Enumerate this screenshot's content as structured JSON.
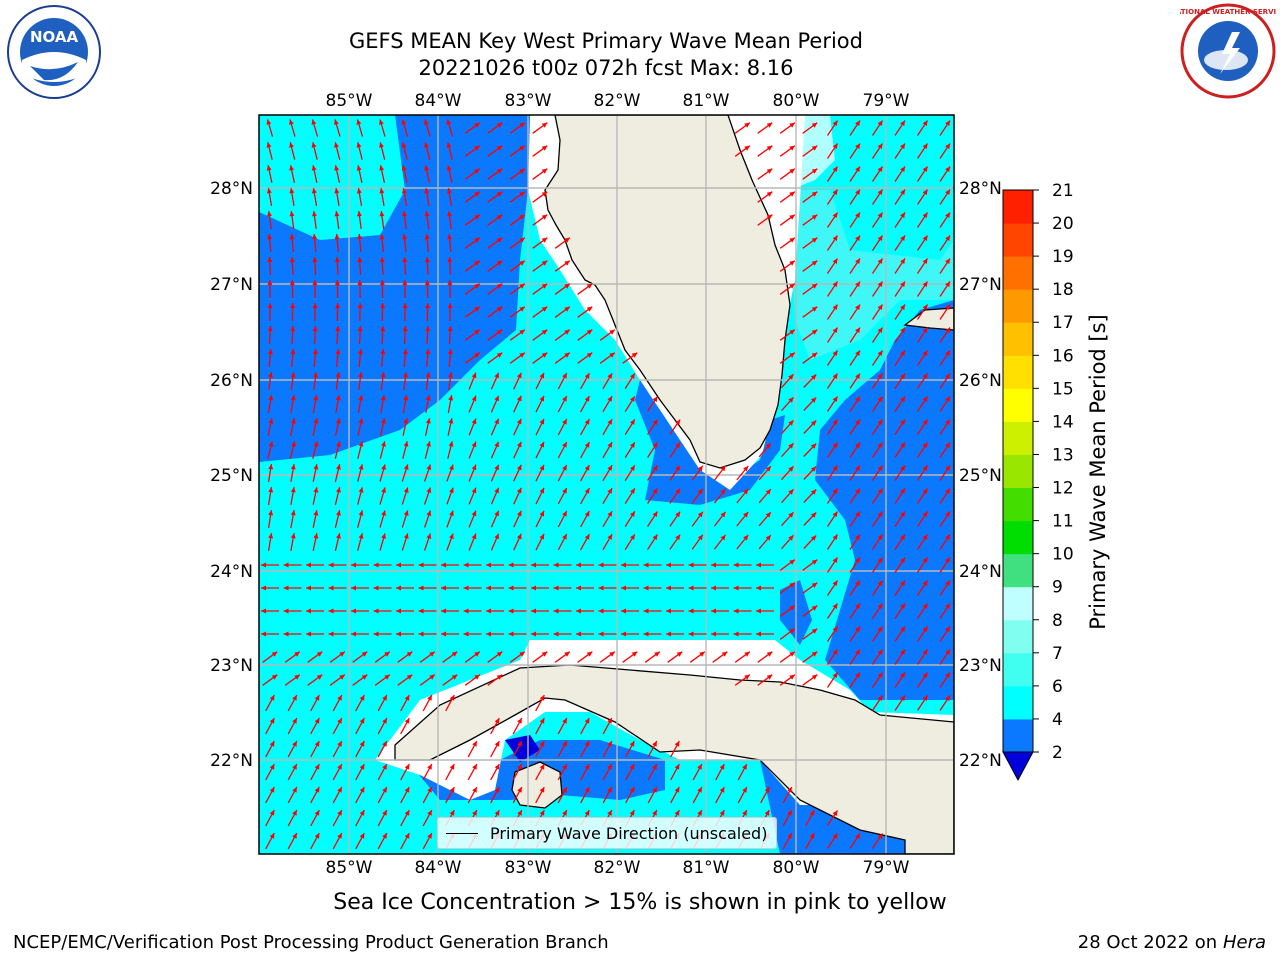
{
  "title_line1": "GEFS MEAN Key West Primary Wave Mean Period",
  "title_line2": "20221026 t00z 072h fcst   Max: 8.16",
  "x_ticks": [
    "85°W",
    "84°W",
    "83°W",
    "82°W",
    "81°W",
    "80°W",
    "79°W"
  ],
  "y_ticks": [
    "28°N",
    "27°N",
    "26°N",
    "25°N",
    "24°N",
    "23°N",
    "22°N"
  ],
  "colorbar": {
    "title": "Primary Wave Mean Period [s]",
    "levels": [
      "2",
      "4",
      "6",
      "7",
      "8",
      "9",
      "10",
      "11",
      "12",
      "13",
      "14",
      "15",
      "16",
      "17",
      "18",
      "19",
      "20",
      "21"
    ],
    "colors": [
      "#0a78ff",
      "#00ffff",
      "#40fff0",
      "#80fff0",
      "#c0ffff",
      "#40e080",
      "#00dd00",
      "#44dd00",
      "#99e600",
      "#ccf000",
      "#ffff00",
      "#ffe000",
      "#ffc000",
      "#ff9900",
      "#ff7000",
      "#ff4500",
      "#ff2000",
      "#ff0000"
    ],
    "under_color": "#0000dd"
  },
  "legend": {
    "label": "Primary Wave Direction (unscaled)"
  },
  "note": "Sea Ice Concentration > 15% is shown in pink to yellow",
  "credit": "NCEP/EMC/Verification Post Processing Product Generation Branch",
  "date_text": "28 Oct 2022 on",
  "host": "Hera",
  "colors": {
    "land": "#eeede0",
    "ocean_light": "#00ffff",
    "ocean_dark": "#0a78ff",
    "ocean_pale": "#b0ffff",
    "ocean_mid": "#40f7f7",
    "arrow": "#ff0000",
    "grid": "#b8b8b8"
  },
  "logos": {
    "noaa": "NOAA",
    "nws": "NATIONAL WEATHER SERVICE"
  }
}
